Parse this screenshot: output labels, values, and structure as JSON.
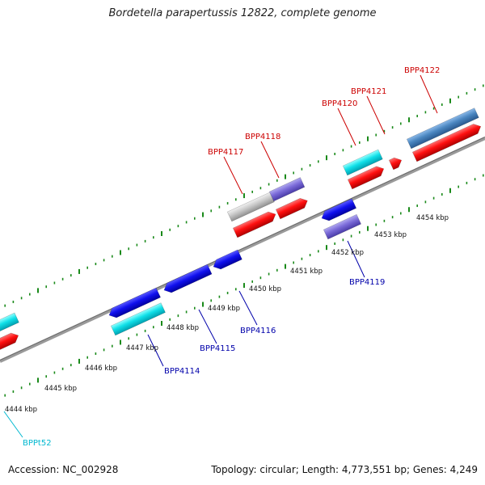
{
  "title": "Bordetella parapertussis 12822, complete genome",
  "footer": {
    "accession": "Accession: NC_002928",
    "summary": "Topology: circular; Length: 4,773,551 bp; Genes: 4,249"
  },
  "colors": {
    "forward_cds": "#ff0000",
    "reverse_cds": "#0000ee",
    "rna": "#00d8e0",
    "pseudo": "#8070d8",
    "steel": "#4a86c0",
    "grey": "#c8c8c8",
    "tick_green": "#1a8a1a",
    "label_red": "#cc0000",
    "label_blue": "#0000aa",
    "label_cyan": "#00b8d0"
  },
  "kbp_labels": [
    "4444 kbp",
    "4445 kbp",
    "4446 kbp",
    "4447 kbp",
    "4448 kbp",
    "4449 kbp",
    "4450 kbp",
    "4451 kbp",
    "4452 kbp",
    "4453 kbp",
    "4454 kbp"
  ],
  "gene_labels": {
    "BPP4122": "BPP4122",
    "BPP4121": "BPP4121",
    "BPP4120": "BPP4120",
    "BPP4118": "BPP4118",
    "BPP4117": "BPP4117",
    "BPP4119": "BPP4119",
    "BPP4116": "BPP4116",
    "BPP4115": "BPP4115",
    "BPP4114": "BPP4114",
    "BPPt52": "BPPt52"
  }
}
